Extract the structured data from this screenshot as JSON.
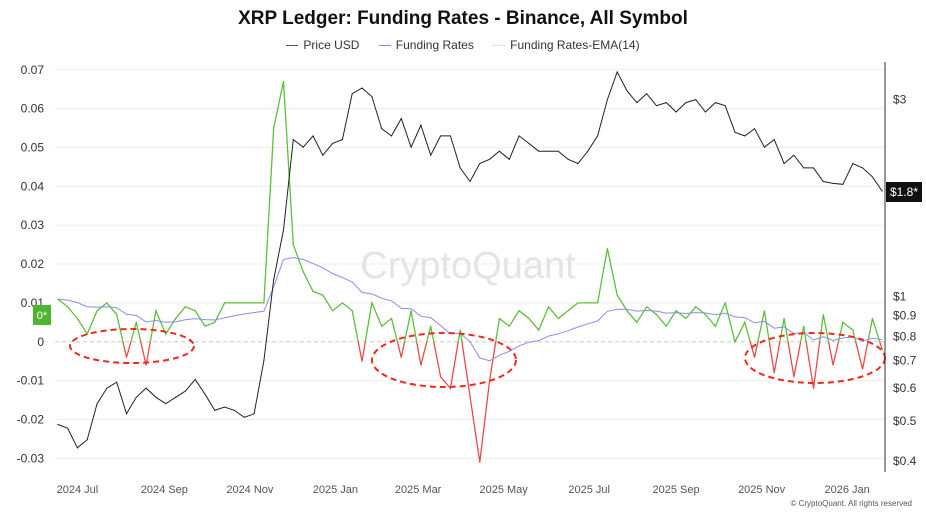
{
  "chart_data": {
    "type": "line",
    "title": "XRP Ledger: Funding Rates - Binance, All Symbol",
    "watermark": "CryptoQuant",
    "footer": "© CryptoQuant. All rights reserved",
    "legend": [
      "Price USD",
      "Funding Rates",
      "Funding Rates-EMA(14)"
    ],
    "legend_position": "top-center",
    "grid": true,
    "colors": {
      "price": "#222222",
      "funding_positive": "#5cbf3a",
      "funding_negative": "#e84a4a",
      "ema": "#8a8cf0",
      "annotation": "#ee2a1e"
    },
    "x_ticks": [
      "2024 Jul",
      "2024 Sep",
      "2024 Nov",
      "2025 Jan",
      "2025 Mar",
      "2025 May",
      "2025 Jul",
      "2025 Sep",
      "2025 Nov",
      "2026 Jan"
    ],
    "x_tick_dates": [
      "2024-07-01",
      "2024-09-01",
      "2024-11-01",
      "2025-01-01",
      "2025-03-01",
      "2025-05-01",
      "2025-07-01",
      "2025-09-01",
      "2025-11-01",
      "2026-01-01"
    ],
    "x_range": [
      "2024-06-15",
      "2026-01-28"
    ],
    "y_left": {
      "ticks": [
        0.07,
        0.06,
        0.05,
        0.04,
        0.03,
        0.02,
        0.01,
        0,
        -0.01,
        -0.02,
        -0.03
      ],
      "labels": [
        "0.07",
        "0.06",
        "0.05",
        "0.04",
        "0.03",
        "0.02",
        "0.01",
        "0",
        "-0.01",
        "-0.02",
        "-0.03"
      ],
      "range": [
        -0.033,
        0.072
      ]
    },
    "y_right": {
      "scale": "log",
      "ticks": [
        3,
        1,
        0.9,
        0.8,
        0.7,
        0.6,
        0.5,
        0.4
      ],
      "labels": [
        "$3",
        "$1",
        "$0.9",
        "$0.8",
        "$0.7",
        "$0.6",
        "$0.5",
        "$0.4"
      ],
      "range": [
        0.38,
        3.7
      ]
    },
    "current_labels": {
      "funding": "0*",
      "price": "$1.8*"
    },
    "dates": [
      "2024-06-17",
      "2024-06-24",
      "2024-07-01",
      "2024-07-08",
      "2024-07-15",
      "2024-07-22",
      "2024-07-29",
      "2024-08-05",
      "2024-08-12",
      "2024-08-19",
      "2024-08-26",
      "2024-09-02",
      "2024-09-09",
      "2024-09-16",
      "2024-09-23",
      "2024-09-30",
      "2024-10-07",
      "2024-10-14",
      "2024-10-21",
      "2024-10-28",
      "2024-11-04",
      "2024-11-11",
      "2024-11-18",
      "2024-11-25",
      "2024-12-02",
      "2024-12-09",
      "2024-12-16",
      "2024-12-23",
      "2024-12-30",
      "2025-01-06",
      "2025-01-13",
      "2025-01-20",
      "2025-01-27",
      "2025-02-03",
      "2025-02-10",
      "2025-02-17",
      "2025-02-24",
      "2025-03-03",
      "2025-03-10",
      "2025-03-17",
      "2025-03-24",
      "2025-03-31",
      "2025-04-07",
      "2025-04-14",
      "2025-04-21",
      "2025-04-28",
      "2025-05-05",
      "2025-05-12",
      "2025-05-19",
      "2025-05-26",
      "2025-06-02",
      "2025-06-09",
      "2025-06-16",
      "2025-06-23",
      "2025-06-30",
      "2025-07-07",
      "2025-07-14",
      "2025-07-21",
      "2025-07-28",
      "2025-08-04",
      "2025-08-11",
      "2025-08-18",
      "2025-08-25",
      "2025-09-01",
      "2025-09-08",
      "2025-09-15",
      "2025-09-22",
      "2025-09-29",
      "2025-10-06",
      "2025-10-13",
      "2025-10-20",
      "2025-10-27",
      "2025-11-03",
      "2025-11-10",
      "2025-11-17",
      "2025-11-24",
      "2025-12-01",
      "2025-12-08",
      "2025-12-15",
      "2025-12-22",
      "2025-12-29",
      "2026-01-05",
      "2026-01-12",
      "2026-01-19",
      "2026-01-26"
    ],
    "series": [
      {
        "name": "Price USD",
        "axis": "right",
        "values": [
          0.49,
          0.48,
          0.43,
          0.45,
          0.55,
          0.6,
          0.62,
          0.52,
          0.57,
          0.6,
          0.57,
          0.55,
          0.57,
          0.59,
          0.63,
          0.58,
          0.53,
          0.54,
          0.53,
          0.51,
          0.52,
          0.7,
          1.1,
          1.45,
          2.4,
          2.3,
          2.45,
          2.2,
          2.35,
          2.4,
          3.1,
          3.2,
          3.05,
          2.55,
          2.45,
          2.7,
          2.3,
          2.6,
          2.2,
          2.45,
          2.45,
          2.05,
          1.9,
          2.1,
          2.15,
          2.25,
          2.15,
          2.45,
          2.35,
          2.25,
          2.25,
          2.25,
          2.15,
          2.1,
          2.25,
          2.45,
          3.0,
          3.5,
          3.15,
          2.95,
          3.1,
          2.9,
          2.95,
          2.8,
          2.95,
          3.0,
          2.8,
          2.95,
          2.9,
          2.5,
          2.45,
          2.55,
          2.3,
          2.4,
          2.1,
          2.2,
          2.05,
          2.05,
          1.9,
          1.88,
          1.87,
          2.1,
          2.05,
          1.95,
          1.8
        ]
      },
      {
        "name": "Funding Rates",
        "axis": "left",
        "values": [
          0.011,
          0.009,
          0.006,
          0.002,
          0.008,
          0.01,
          0.007,
          -0.004,
          0.005,
          -0.006,
          0.008,
          0.002,
          0.006,
          0.009,
          0.008,
          0.004,
          0.005,
          0.01,
          0.01,
          0.01,
          0.01,
          0.01,
          0.055,
          0.067,
          0.025,
          0.018,
          0.013,
          0.012,
          0.008,
          0.01,
          0.008,
          -0.005,
          0.01,
          0.004,
          0.006,
          -0.004,
          0.008,
          -0.006,
          0.004,
          -0.009,
          -0.012,
          0.003,
          -0.014,
          -0.031,
          -0.01,
          0.006,
          0.004,
          0.008,
          0.006,
          0.003,
          0.009,
          0.006,
          0.008,
          0.01,
          0.01,
          0.01,
          0.024,
          0.012,
          0.008,
          0.005,
          0.009,
          0.007,
          0.004,
          0.008,
          0.006,
          0.009,
          0.007,
          0.004,
          0.01,
          0.0,
          0.005,
          -0.004,
          0.008,
          -0.008,
          0.006,
          -0.009,
          0.004,
          -0.012,
          0.007,
          -0.006,
          0.005,
          0.003,
          -0.007,
          0.006,
          -0.002
        ]
      },
      {
        "name": "Funding Rates-EMA(14)",
        "axis": "left",
        "derived_from": "Funding Rates"
      }
    ]
  }
}
